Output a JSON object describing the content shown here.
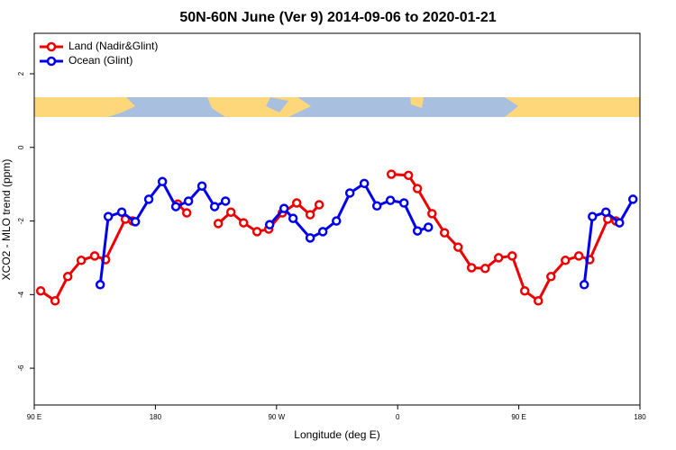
{
  "chart_data": {
    "type": "line",
    "title": "50N-60N June (Ver 9)   2014-09-06 to 2020-01-21",
    "xlabel": "Longitude (deg E)",
    "ylabel": "XCO2 - MLO trend (ppm)",
    "xlim": [
      -270,
      180
    ],
    "ylim": [
      -7,
      3.1
    ],
    "xticks": [
      {
        "value": -270,
        "label": "90 E"
      },
      {
        "value": -180,
        "label": "180"
      },
      {
        "value": -90,
        "label": "90 W"
      },
      0,
      {
        "value": 90,
        "label": "90 E"
      },
      180
    ],
    "yticks": [
      2,
      0,
      -2,
      -4,
      -6
    ],
    "legend": "top-left",
    "series": [
      {
        "name": "Land (Nadir&Glint)",
        "color": "#ee0000",
        "x": [
          -265.2,
          -254.5,
          -245.1,
          -235.1,
          -225.1,
          -217.0,
          -202.3,
          -196.9,
          null,
          -163.4,
          -156.7,
          null,
          -133.3,
          -123.9,
          -114.5,
          -104.5,
          -95.8,
          -85.7,
          -75.0,
          -65.0,
          -58.3,
          null,
          -4.7,
          8.0,
          14.7,
          25.5,
          34.8,
          44.9,
          54.9,
          65.0,
          75.0,
          85.1,
          94.4,
          104.5,
          113.9,
          124.6,
          134.6,
          142.7,
          156.1,
          162.1
        ],
        "values": [
          -3.9,
          -4.17,
          -3.51,
          -3.07,
          -2.95,
          -3.05,
          -1.95,
          -2.0,
          null,
          -1.54,
          -1.78,
          null,
          -2.07,
          -1.76,
          -2.05,
          -2.29,
          -2.22,
          -1.78,
          -1.51,
          -1.83,
          -1.56,
          null,
          -0.73,
          -0.76,
          -1.12,
          -1.8,
          -2.32,
          -2.71,
          -3.27,
          -3.29,
          -3.0,
          -2.95,
          -3.9,
          -4.17,
          -3.51,
          -3.07,
          -2.95,
          -3.05,
          -1.95,
          -2.0
        ]
      },
      {
        "name": "Ocean (Glint)",
        "color": "#0000ee",
        "x": [
          -221.0,
          -215.0,
          -205.0,
          -194.9,
          -184.9,
          -174.8,
          -164.8,
          -155.4,
          -145.4,
          -136.0,
          -127.9,
          null,
          -95.1,
          -84.4,
          -77.7,
          -65.0,
          -55.6,
          -45.5,
          -35.5,
          -24.8,
          -15.4,
          -5.4,
          4.7,
          14.7,
          22.8,
          null,
          138.6,
          144.7,
          154.7,
          164.8,
          174.8
        ],
        "values": [
          -3.73,
          -1.88,
          -1.76,
          -2.02,
          -1.41,
          -0.93,
          -1.61,
          -1.46,
          -1.05,
          -1.61,
          -1.46,
          null,
          -2.1,
          -1.66,
          -1.93,
          -2.46,
          -2.29,
          -2.0,
          -1.24,
          -0.98,
          -1.59,
          -1.44,
          -1.51,
          -2.27,
          -2.17,
          null,
          -3.73,
          -1.88,
          -1.76,
          -2.05,
          -1.41
        ]
      }
    ]
  }
}
